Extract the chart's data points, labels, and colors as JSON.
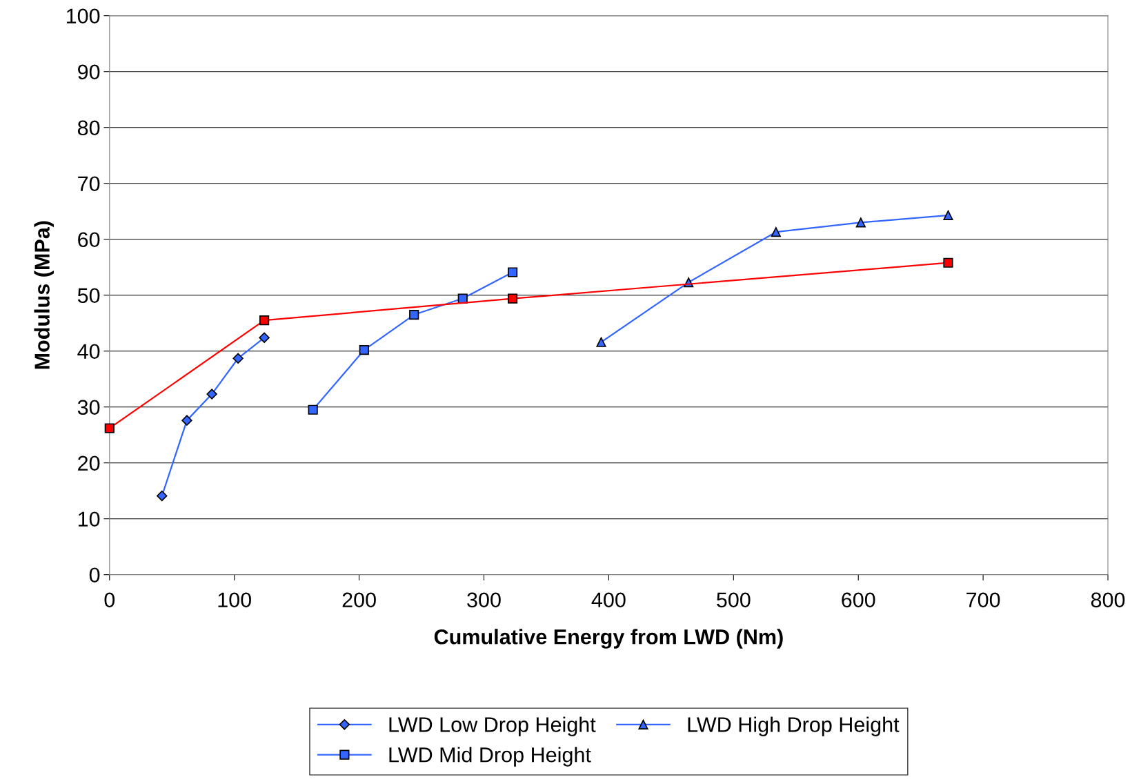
{
  "chart_data": {
    "type": "line",
    "xlabel": "Cumulative Energy from LWD (Nm)",
    "ylabel": "Modulus (MPa)",
    "xlim": [
      0,
      800
    ],
    "xticks": [
      0,
      100,
      200,
      300,
      400,
      500,
      600,
      700,
      800
    ],
    "ylim": [
      0,
      100
    ],
    "yticks": [
      0,
      10,
      20,
      30,
      40,
      50,
      60,
      70,
      80,
      90,
      100
    ],
    "grid": "y",
    "legend": "bottom",
    "line_style": "solid",
    "series": [
      {
        "name": "LWD Low Drop Height",
        "color": "#3366ff",
        "marker": "diamond",
        "x": [
          42,
          62,
          82,
          103,
          124
        ],
        "values": [
          14.1,
          27.6,
          32.3,
          38.7,
          42.4
        ]
      },
      {
        "name": "LWD Mid Drop Height",
        "color": "#3366ff",
        "marker": "square",
        "x": [
          163,
          204,
          244,
          283,
          323
        ],
        "values": [
          29.5,
          40.2,
          46.5,
          49.4,
          54.1
        ]
      },
      {
        "name": "LWD High Drop Height",
        "color": "#3366ff",
        "marker": "triangle",
        "x": [
          394,
          464,
          534,
          602,
          672
        ],
        "values": [
          41.6,
          52.3,
          61.3,
          63.0,
          64.3
        ]
      },
      {
        "color": "#ff0000",
        "marker": "square",
        "x": [
          0,
          124,
          323,
          672
        ],
        "values": [
          26.2,
          45.5,
          49.4,
          55.8
        ]
      }
    ]
  }
}
